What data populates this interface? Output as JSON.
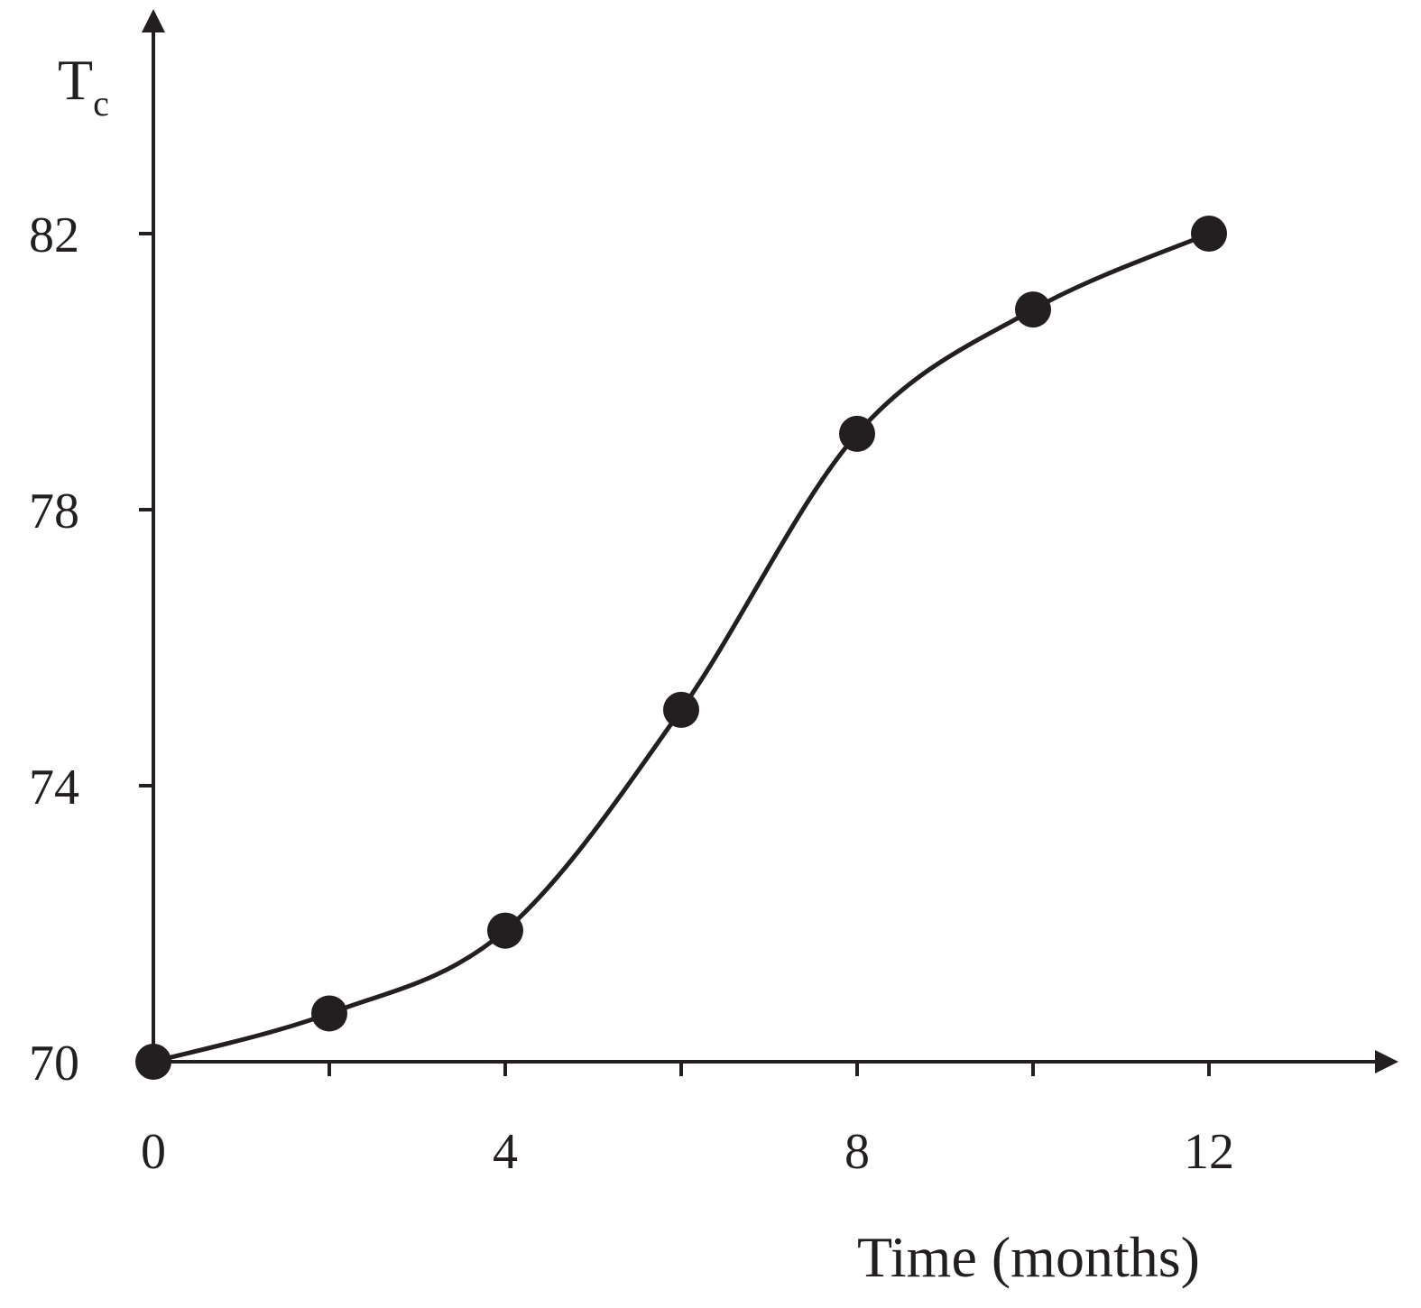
{
  "chart_data": {
    "type": "line",
    "title": "",
    "xlabel": "Time (months)",
    "ylabel": "T",
    "ylabel_subscript": "c",
    "x": [
      0,
      2,
      4,
      6,
      8,
      10,
      12
    ],
    "series": [
      {
        "values": [
          70,
          70.7,
          71.9,
          75.1,
          79.1,
          80.9,
          82
        ]
      }
    ],
    "xticks": [
      0,
      2,
      4,
      6,
      8,
      10,
      12
    ],
    "xtick_labels": [
      "0",
      "",
      "4",
      "",
      "8",
      "",
      "12"
    ],
    "yticks": [
      70,
      74,
      78,
      82
    ],
    "ytick_labels": [
      "70",
      "74",
      "78",
      "82"
    ],
    "xlim": [
      0,
      14
    ],
    "ylim": [
      70,
      82
    ],
    "grid": false,
    "legend": "none",
    "markers": "filled-circle",
    "line_style": "smooth",
    "color": "#231f20"
  }
}
